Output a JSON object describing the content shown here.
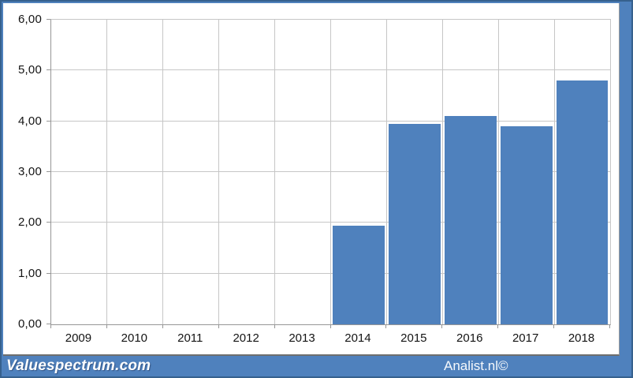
{
  "chart_data": {
    "type": "bar",
    "title": "",
    "xlabel": "",
    "ylabel": "",
    "categories": [
      "2009",
      "2010",
      "2011",
      "2012",
      "2013",
      "2014",
      "2015",
      "2016",
      "2017",
      "2018"
    ],
    "values": [
      0,
      0,
      0,
      0,
      0,
      1.95,
      3.95,
      4.1,
      3.9,
      4.8
    ],
    "ylim": [
      0,
      6
    ],
    "y_tick_step": 1,
    "y_tick_labels": [
      "0,00",
      "1,00",
      "2,00",
      "3,00",
      "4,00",
      "5,00",
      "6,00"
    ],
    "grid": true,
    "legend_position": "none",
    "bar_color": "#4f81bd"
  },
  "footer": {
    "left_brand": "Valuespectrum.com",
    "center_brand": "Analist.nl©"
  },
  "colors": {
    "frame_blue": "#4f81bd",
    "frame_dark_blue": "#36618e",
    "bar_blue": "#4f81bd",
    "gridline_gray": "#c6c6c6",
    "axis_gray": "#969696",
    "panel_white": "#ffffff",
    "label_black": "#141414",
    "footer_text_white": "#ffffff"
  }
}
